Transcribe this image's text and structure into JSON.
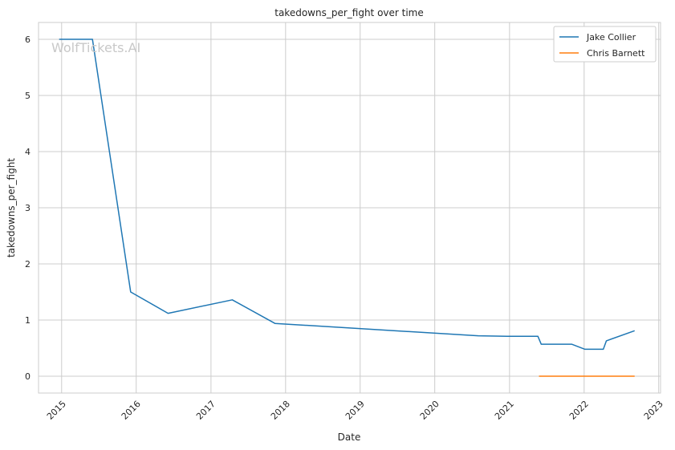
{
  "watermark": "WolfTickets.AI",
  "chart_data": {
    "type": "line",
    "title": "takedowns_per_fight over time",
    "xlabel": "Date",
    "ylabel": "takedowns_per_fight",
    "xlim": [
      "2014-09-10",
      "2023-01-10"
    ],
    "ylim": [
      -0.3,
      6.3
    ],
    "x_ticks": [
      "2015",
      "2016",
      "2017",
      "2018",
      "2019",
      "2020",
      "2021",
      "2022",
      "2023"
    ],
    "y_ticks": [
      0,
      1,
      2,
      3,
      4,
      5,
      6
    ],
    "grid": true,
    "legend_position": "top-right",
    "series": [
      {
        "name": "Jake Collier",
        "color": "#1f77b4",
        "x": [
          "2014-12-20",
          "2015-06-01",
          "2015-12-05",
          "2016-06-05",
          "2017-04-15",
          "2017-11-10",
          "2020-08-01",
          "2020-12-20",
          "2021-05-20",
          "2021-06-05",
          "2021-11-01",
          "2022-01-05",
          "2022-04-05",
          "2022-04-20",
          "2022-09-05"
        ],
        "y": [
          6.0,
          6.0,
          1.5,
          1.12,
          1.36,
          0.94,
          0.72,
          0.71,
          0.71,
          0.57,
          0.57,
          0.48,
          0.48,
          0.63,
          0.81
        ]
      },
      {
        "name": "Chris Barnett",
        "color": "#ff7f0e",
        "x": [
          "2021-05-25",
          "2022-09-05"
        ],
        "y": [
          0.0,
          0.0
        ]
      }
    ]
  }
}
